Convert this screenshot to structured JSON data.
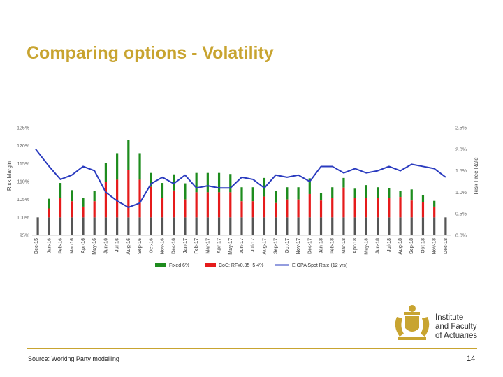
{
  "title": "Comparing options - Volatility",
  "source": "Source: Working Party modelling",
  "page_number": "14",
  "logo": {
    "line1": "Institute",
    "line2": "and Faculty",
    "line3": "of Actuaries"
  },
  "colors": {
    "title": "#c8a430",
    "fixed": "#1e8c1e",
    "coc": "#e51b1b",
    "base": "#555555",
    "eiopa": "#2a3bbf"
  },
  "chart_data": {
    "type": "bar",
    "stacked": true,
    "ylabel": "Risk Margin",
    "y2label": "Risk Free Rate",
    "ylim": [
      95,
      125
    ],
    "y_ticks": [
      "125%",
      "120%",
      "115%",
      "110%",
      "105%",
      "100%",
      "95%"
    ],
    "y2lim": [
      0,
      2.5
    ],
    "y2_ticks": [
      "2.5%",
      "2.0%",
      "1.5%",
      "1.0%",
      "0.5%",
      "0.0%"
    ],
    "categories": [
      "Dec-15",
      "Jan-16",
      "Feb-16",
      "Mar-16",
      "Apr-16",
      "May-16",
      "Jun-16",
      "Jul-16",
      "Aug-16",
      "Sep-16",
      "Oct-16",
      "Nov-16",
      "Dec-16",
      "Jan-17",
      "Feb-17",
      "Mar-17",
      "Apr-17",
      "May-17",
      "Jun-17",
      "Jul-17",
      "Aug-17",
      "Sep-17",
      "Oct-17",
      "Nov-17",
      "Dec-17",
      "Jan-18",
      "Feb-18",
      "Mar-18",
      "Apr-18",
      "May-18",
      "Jun-18",
      "Jul-18",
      "Aug-18",
      "Sep-18",
      "Oct-18",
      "Nov-18",
      "Dec-18"
    ],
    "series": [
      {
        "name": "Fixed 6%",
        "type": "bar",
        "values": [
          100.0,
          105.2,
          109.6,
          107.6,
          105.5,
          107.4,
          115.1,
          117.9,
          121.6,
          117.9,
          112.4,
          109.6,
          112.0,
          109.5,
          112.4,
          112.4,
          112.4,
          112.1,
          108.4,
          108.4,
          111.0,
          107.4,
          108.4,
          108.4,
          110.9,
          106.8,
          108.4,
          111.0,
          108.0,
          109.0,
          108.4,
          108.2,
          107.4,
          107.8,
          106.3,
          104.6,
          100.0
        ]
      },
      {
        "name": "CoC: RFx0.35+5.4%",
        "type": "bar",
        "values": [
          100.0,
          102.5,
          105.5,
          104.5,
          103.0,
          104.5,
          110.0,
          110.5,
          113.2,
          110.5,
          108.5,
          105.5,
          107.5,
          105.0,
          107.0,
          107.0,
          107.0,
          107.0,
          104.5,
          104.5,
          105.8,
          104.0,
          105.0,
          105.0,
          106.5,
          104.7,
          105.5,
          108.3,
          105.5,
          105.5,
          105.5,
          105.5,
          105.7,
          104.7,
          104.2,
          103.0,
          100.0
        ]
      },
      {
        "name": "EIOPA Spot Rate (12 yrs)",
        "type": "line",
        "axis": "right",
        "values": [
          2.0,
          1.6,
          1.3,
          1.4,
          1.6,
          1.5,
          1.0,
          0.8,
          0.65,
          0.75,
          1.2,
          1.35,
          1.2,
          1.4,
          1.1,
          1.15,
          1.1,
          1.1,
          1.35,
          1.3,
          1.1,
          1.4,
          1.35,
          1.4,
          1.25,
          1.6,
          1.6,
          1.45,
          1.55,
          1.45,
          1.5,
          1.6,
          1.5,
          1.65,
          1.6,
          1.55,
          1.35
        ]
      }
    ]
  }
}
